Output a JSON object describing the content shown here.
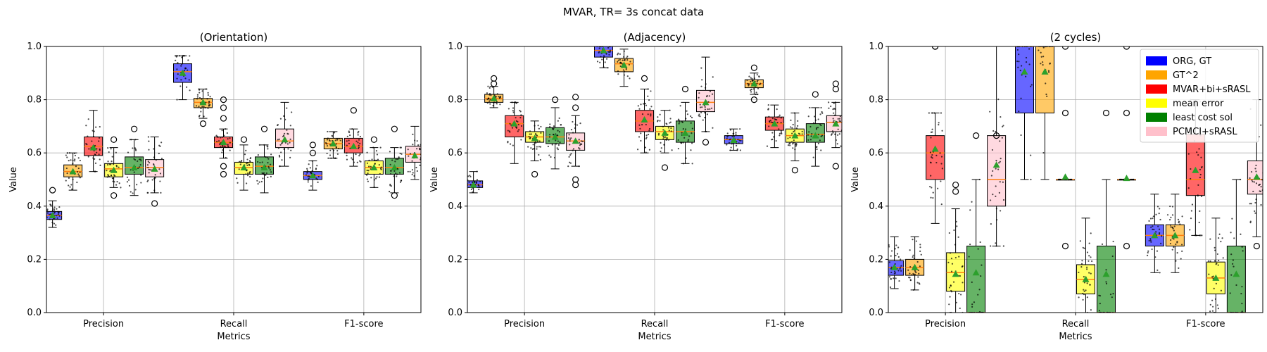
{
  "figure_title": "MVAR, TR= 3s concat data",
  "legend": {
    "placement": "top-right of third panel",
    "entries": [
      {
        "label": "ORG, GT",
        "color": "#0000ff"
      },
      {
        "label": "GT^2",
        "color": "#ffa500"
      },
      {
        "label": "MVAR+bi+sRASL",
        "color": "#ff0000"
      },
      {
        "label": "mean error",
        "color": "#ffff00"
      },
      {
        "label": "least cost sol",
        "color": "#008000"
      },
      {
        "label": "PCMCI+sRASL",
        "color": "#ffc0cb"
      }
    ]
  },
  "chart_data": [
    {
      "type": "box",
      "title": "(Orientation)",
      "xlabel": "Metrics",
      "ylabel": "Value",
      "ylim": [
        0,
        1
      ],
      "yticks": [
        "0.0",
        "0.2",
        "0.4",
        "0.6",
        "0.8",
        "1.0"
      ],
      "grid": true,
      "categories": [
        "Precision",
        "Recall",
        "F1-score"
      ],
      "series": [
        {
          "name": "ORG, GT",
          "boxes": [
            {
              "q1": 0.35,
              "median": 0.365,
              "q3": 0.38,
              "mean": 0.365,
              "wlo": 0.32,
              "whi": 0.42,
              "fliers": [
                0.46
              ]
            },
            {
              "q1": 0.865,
              "median": 0.905,
              "q3": 0.935,
              "mean": 0.9,
              "wlo": 0.8,
              "whi": 0.965,
              "fliers": []
            },
            {
              "q1": 0.5,
              "median": 0.515,
              "q3": 0.53,
              "mean": 0.515,
              "wlo": 0.46,
              "whi": 0.57,
              "fliers": [
                0.6,
                0.63
              ]
            }
          ]
        },
        {
          "name": "GT^2",
          "boxes": [
            {
              "q1": 0.51,
              "median": 0.53,
              "q3": 0.555,
              "mean": 0.53,
              "wlo": 0.46,
              "whi": 0.6,
              "fliers": []
            },
            {
              "q1": 0.77,
              "median": 0.79,
              "q3": 0.805,
              "mean": 0.79,
              "wlo": 0.73,
              "whi": 0.84,
              "fliers": [
                0.71
              ]
            },
            {
              "q1": 0.615,
              "median": 0.635,
              "q3": 0.655,
              "mean": 0.635,
              "wlo": 0.58,
              "whi": 0.68,
              "fliers": []
            }
          ]
        },
        {
          "name": "MVAR+bi+sRASL",
          "boxes": [
            {
              "q1": 0.59,
              "median": 0.625,
              "q3": 0.66,
              "mean": 0.62,
              "wlo": 0.53,
              "whi": 0.76,
              "fliers": []
            },
            {
              "q1": 0.62,
              "median": 0.64,
              "q3": 0.66,
              "mean": 0.64,
              "wlo": 0.58,
              "whi": 0.69,
              "fliers": [
                0.55,
                0.52,
                0.73,
                0.77,
                0.8
              ]
            },
            {
              "q1": 0.6,
              "median": 0.625,
              "q3": 0.655,
              "mean": 0.625,
              "wlo": 0.55,
              "whi": 0.69,
              "fliers": [
                0.76
              ]
            }
          ]
        },
        {
          "name": "mean error",
          "boxes": [
            {
              "q1": 0.51,
              "median": 0.54,
              "q3": 0.56,
              "mean": 0.535,
              "wlo": 0.47,
              "whi": 0.62,
              "fliers": [
                0.44,
                0.65
              ]
            },
            {
              "q1": 0.52,
              "median": 0.545,
              "q3": 0.565,
              "mean": 0.545,
              "wlo": 0.46,
              "whi": 0.63,
              "fliers": [
                0.65
              ]
            },
            {
              "q1": 0.52,
              "median": 0.545,
              "q3": 0.57,
              "mean": 0.545,
              "wlo": 0.47,
              "whi": 0.62,
              "fliers": [
                0.65
              ]
            }
          ]
        },
        {
          "name": "least cost sol",
          "boxes": [
            {
              "q1": 0.52,
              "median": 0.545,
              "q3": 0.585,
              "mean": 0.545,
              "wlo": 0.44,
              "whi": 0.65,
              "fliers": [
                0.69
              ]
            },
            {
              "q1": 0.52,
              "median": 0.55,
              "q3": 0.585,
              "mean": 0.545,
              "wlo": 0.45,
              "whi": 0.63,
              "fliers": [
                0.69
              ]
            },
            {
              "q1": 0.52,
              "median": 0.545,
              "q3": 0.58,
              "mean": 0.545,
              "wlo": 0.45,
              "whi": 0.62,
              "fliers": [
                0.44,
                0.69
              ]
            }
          ]
        },
        {
          "name": "PCMCI+sRASL",
          "boxes": [
            {
              "q1": 0.51,
              "median": 0.545,
              "q3": 0.575,
              "mean": 0.54,
              "wlo": 0.45,
              "whi": 0.66,
              "fliers": [
                0.41
              ]
            },
            {
              "q1": 0.62,
              "median": 0.645,
              "q3": 0.69,
              "mean": 0.65,
              "wlo": 0.55,
              "whi": 0.79,
              "fliers": []
            },
            {
              "q1": 0.565,
              "median": 0.595,
              "q3": 0.625,
              "mean": 0.59,
              "wlo": 0.5,
              "whi": 0.7,
              "fliers": []
            }
          ]
        }
      ]
    },
    {
      "type": "box",
      "title": "(Adjacency)",
      "xlabel": "Metrics",
      "ylabel": "Value",
      "ylim": [
        0,
        1
      ],
      "yticks": [
        "0.0",
        "0.2",
        "0.4",
        "0.6",
        "0.8",
        "1.0"
      ],
      "grid": true,
      "categories": [
        "Precision",
        "Recall",
        "F1-score"
      ],
      "series": [
        {
          "name": "ORG, GT",
          "boxes": [
            {
              "q1": 0.47,
              "median": 0.48,
              "q3": 0.495,
              "mean": 0.48,
              "wlo": 0.45,
              "whi": 0.53,
              "fliers": []
            },
            {
              "q1": 0.96,
              "median": 0.985,
              "q3": 1.0,
              "mean": 0.985,
              "wlo": 0.92,
              "whi": 1.0,
              "fliers": []
            },
            {
              "q1": 0.635,
              "median": 0.65,
              "q3": 0.665,
              "mean": 0.648,
              "wlo": 0.61,
              "whi": 0.69,
              "fliers": []
            }
          ]
        },
        {
          "name": "GT^2",
          "boxes": [
            {
              "q1": 0.79,
              "median": 0.805,
              "q3": 0.82,
              "mean": 0.805,
              "wlo": 0.77,
              "whi": 0.85,
              "fliers": [
                0.86,
                0.88
              ]
            },
            {
              "q1": 0.905,
              "median": 0.935,
              "q3": 0.955,
              "mean": 0.93,
              "wlo": 0.85,
              "whi": 0.99,
              "fliers": []
            },
            {
              "q1": 0.845,
              "median": 0.86,
              "q3": 0.875,
              "mean": 0.86,
              "wlo": 0.82,
              "whi": 0.9,
              "fliers": [
                0.8,
                0.92
              ]
            }
          ]
        },
        {
          "name": "MVAR+bi+sRASL",
          "boxes": [
            {
              "q1": 0.66,
              "median": 0.71,
              "q3": 0.74,
              "mean": 0.71,
              "wlo": 0.56,
              "whi": 0.79,
              "fliers": []
            },
            {
              "q1": 0.68,
              "median": 0.72,
              "q3": 0.76,
              "mean": 0.725,
              "wlo": 0.6,
              "whi": 0.84,
              "fliers": [
                0.88
              ]
            },
            {
              "q1": 0.685,
              "median": 0.71,
              "q3": 0.735,
              "mean": 0.71,
              "wlo": 0.62,
              "whi": 0.78,
              "fliers": []
            }
          ]
        },
        {
          "name": "mean error",
          "boxes": [
            {
              "q1": 0.64,
              "median": 0.66,
              "q3": 0.68,
              "mean": 0.655,
              "wlo": 0.57,
              "whi": 0.72,
              "fliers": [
                0.52
              ]
            },
            {
              "q1": 0.65,
              "median": 0.68,
              "q3": 0.7,
              "mean": 0.675,
              "wlo": 0.6,
              "whi": 0.76,
              "fliers": [
                0.545
              ]
            },
            {
              "q1": 0.64,
              "median": 0.665,
              "q3": 0.69,
              "mean": 0.665,
              "wlo": 0.57,
              "whi": 0.75,
              "fliers": [
                0.535
              ]
            }
          ]
        },
        {
          "name": "least cost sol",
          "boxes": [
            {
              "q1": 0.635,
              "median": 0.66,
              "q3": 0.695,
              "mean": 0.66,
              "wlo": 0.54,
              "whi": 0.77,
              "fliers": [
                0.8
              ]
            },
            {
              "q1": 0.64,
              "median": 0.68,
              "q3": 0.72,
              "mean": 0.675,
              "wlo": 0.56,
              "whi": 0.79,
              "fliers": [
                0.84
              ]
            },
            {
              "q1": 0.64,
              "median": 0.67,
              "q3": 0.71,
              "mean": 0.665,
              "wlo": 0.55,
              "whi": 0.77,
              "fliers": [
                0.82
              ]
            }
          ]
        },
        {
          "name": "PCMCI+sRASL",
          "boxes": [
            {
              "q1": 0.61,
              "median": 0.645,
              "q3": 0.675,
              "mean": 0.645,
              "wlo": 0.55,
              "whi": 0.74,
              "fliers": [
                0.48,
                0.5,
                0.77,
                0.81
              ]
            },
            {
              "q1": 0.755,
              "median": 0.79,
              "q3": 0.835,
              "mean": 0.79,
              "wlo": 0.68,
              "whi": 0.96,
              "fliers": [
                0.64
              ]
            },
            {
              "q1": 0.68,
              "median": 0.715,
              "q3": 0.74,
              "mean": 0.71,
              "wlo": 0.62,
              "whi": 0.79,
              "fliers": [
                0.55,
                0.84,
                0.86
              ]
            }
          ]
        }
      ]
    },
    {
      "type": "box",
      "title": "(2 cycles)",
      "xlabel": "Metrics",
      "ylabel": "Value",
      "ylim": [
        0,
        1
      ],
      "yticks": [
        "0.0",
        "0.2",
        "0.4",
        "0.6",
        "0.8",
        "1.0"
      ],
      "grid": true,
      "categories": [
        "Precision",
        "Recall",
        "F1-score"
      ],
      "series": [
        {
          "name": "ORG, GT",
          "boxes": [
            {
              "q1": 0.14,
              "median": 0.17,
              "q3": 0.195,
              "mean": 0.17,
              "wlo": 0.09,
              "whi": 0.285,
              "fliers": []
            },
            {
              "q1": 0.75,
              "median": 1.0,
              "q3": 1.0,
              "mean": 0.905,
              "wlo": 0.5,
              "whi": 1.0,
              "fliers": []
            },
            {
              "q1": 0.25,
              "median": 0.29,
              "q3": 0.33,
              "mean": 0.29,
              "wlo": 0.15,
              "whi": 0.445,
              "fliers": []
            }
          ]
        },
        {
          "name": "GT^2",
          "boxes": [
            {
              "q1": 0.14,
              "median": 0.17,
              "q3": 0.2,
              "mean": 0.17,
              "wlo": 0.085,
              "whi": 0.285,
              "fliers": []
            },
            {
              "q1": 0.75,
              "median": 1.0,
              "q3": 1.0,
              "mean": 0.905,
              "wlo": 0.5,
              "whi": 1.0,
              "fliers": []
            },
            {
              "q1": 0.25,
              "median": 0.29,
              "q3": 0.33,
              "mean": 0.29,
              "wlo": 0.15,
              "whi": 0.445,
              "fliers": []
            }
          ]
        },
        {
          "name": "MVAR+bi+sRASL",
          "boxes": [
            {
              "q1": 0.5,
              "median": 0.6,
              "q3": 0.665,
              "mean": 0.615,
              "wlo": 0.335,
              "whi": 0.75,
              "fliers": [
                1.0,
                1.0
              ]
            },
            {
              "q1": 0.5,
              "median": 0.5,
              "q3": 0.5,
              "mean": 0.51,
              "wlo": 0.5,
              "whi": 0.5,
              "fliers": [
                0.25,
                0.75,
                1.0
              ]
            },
            {
              "q1": 0.44,
              "median": 0.5,
              "q3": 0.67,
              "mean": 0.535,
              "wlo": 0.29,
              "whi": 0.8,
              "fliers": []
            }
          ]
        },
        {
          "name": "mean error",
          "boxes": [
            {
              "q1": 0.08,
              "median": 0.15,
              "q3": 0.225,
              "mean": 0.145,
              "wlo": 0.0,
              "whi": 0.39,
              "fliers": [
                0.455,
                0.48
              ]
            },
            {
              "q1": 0.07,
              "median": 0.125,
              "q3": 0.18,
              "mean": 0.125,
              "wlo": 0.0,
              "whi": 0.355,
              "fliers": []
            },
            {
              "q1": 0.07,
              "median": 0.13,
              "q3": 0.19,
              "mean": 0.13,
              "wlo": 0.0,
              "whi": 0.355,
              "fliers": []
            }
          ]
        },
        {
          "name": "least cost sol",
          "boxes": [
            {
              "q1": 0.0,
              "median": 0.0,
              "q3": 0.25,
              "mean": 0.15,
              "wlo": 0.0,
              "whi": 0.5,
              "fliers": [
                0.665
              ]
            },
            {
              "q1": 0.0,
              "median": 0.0,
              "q3": 0.25,
              "mean": 0.145,
              "wlo": 0.0,
              "whi": 0.5,
              "fliers": [
                0.75
              ]
            },
            {
              "q1": 0.0,
              "median": 0.0,
              "q3": 0.25,
              "mean": 0.145,
              "wlo": 0.0,
              "whi": 0.5,
              "fliers": []
            }
          ]
        },
        {
          "name": "PCMCI+sRASL",
          "boxes": [
            {
              "q1": 0.4,
              "median": 0.5,
              "q3": 0.665,
              "mean": 0.555,
              "wlo": 0.25,
              "whi": 1.0,
              "fliers": [
                0.665
              ]
            },
            {
              "q1": 0.5,
              "median": 0.5,
              "q3": 0.5,
              "mean": 0.505,
              "wlo": 0.5,
              "whi": 0.5,
              "fliers": [
                0.25,
                0.75,
                1.0
              ]
            },
            {
              "q1": 0.445,
              "median": 0.5,
              "q3": 0.57,
              "mean": 0.51,
              "wlo": 0.285,
              "whi": 0.8,
              "fliers": [
                0.25
              ]
            }
          ]
        }
      ]
    }
  ]
}
